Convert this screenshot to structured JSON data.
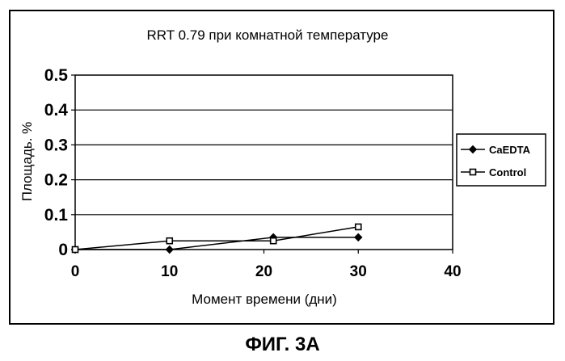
{
  "caption": "ФИГ. 3А",
  "chart_data": {
    "type": "line",
    "title": "RRT 0.79 при комнатной температуре",
    "xlabel": "Момент времени (дни)",
    "ylabel": "Площадь. %",
    "xlim": [
      0,
      40
    ],
    "ylim": [
      0,
      0.5
    ],
    "x_ticks": [
      "0",
      "10",
      "20",
      "30",
      "40"
    ],
    "y_ticks": [
      "0",
      "0.1",
      "0.2",
      "0.3",
      "0.4",
      "0.5"
    ],
    "grid": "horizontal",
    "legend_position": "right",
    "series": [
      {
        "name": "CaEDTA",
        "marker": "diamond",
        "color": "#000000",
        "points": [
          [
            0,
            0.0
          ],
          [
            10,
            0.0
          ],
          [
            21,
            0.035
          ],
          [
            30,
            0.035
          ]
        ]
      },
      {
        "name": "Control",
        "marker": "square",
        "color": "#000000",
        "points": [
          [
            0,
            0.0
          ],
          [
            10,
            0.025
          ],
          [
            21,
            0.025
          ],
          [
            30,
            0.065
          ]
        ]
      }
    ]
  }
}
